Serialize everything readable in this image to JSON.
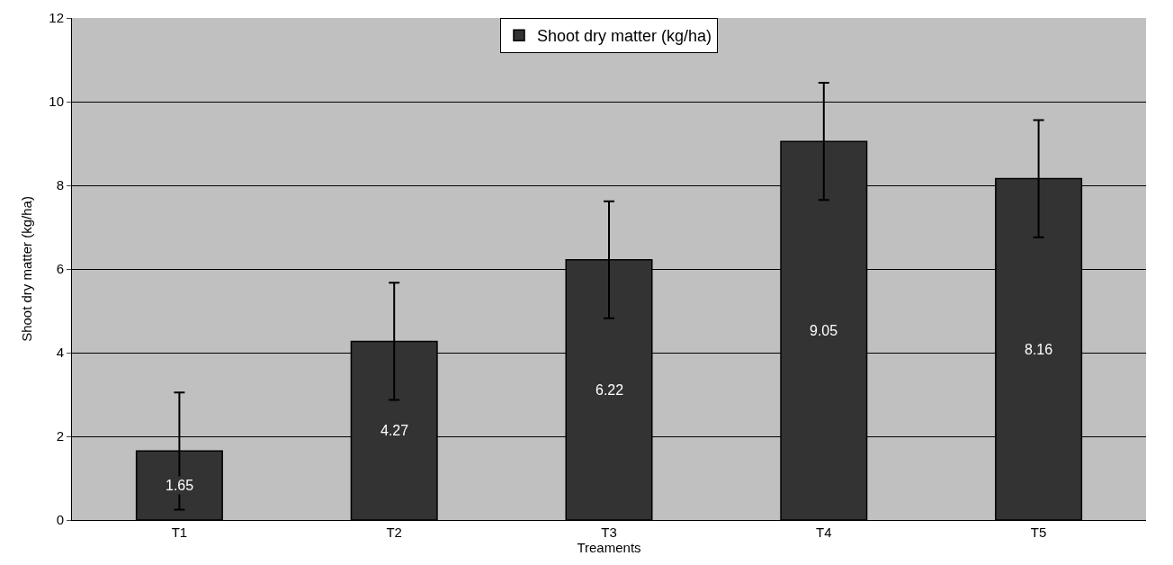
{
  "chart_data": {
    "type": "bar",
    "xlabel": "Treaments",
    "ylabel": "Shoot dry matter (kg/ha)",
    "categories": [
      "T1",
      "T2",
      "T3",
      "T4",
      "T5"
    ],
    "series": [
      {
        "name": "Shoot dry matter (kg/ha)",
        "color": "#333333",
        "values": [
          1.65,
          4.27,
          6.22,
          9.05,
          8.16
        ],
        "errors": [
          1.4,
          1.4,
          1.4,
          1.4,
          1.4
        ]
      }
    ],
    "ylim": [
      0,
      12
    ],
    "yticks": [
      0,
      2,
      4,
      6,
      8,
      10,
      12
    ],
    "grid": "y",
    "legend": "top",
    "data_labels": true
  }
}
